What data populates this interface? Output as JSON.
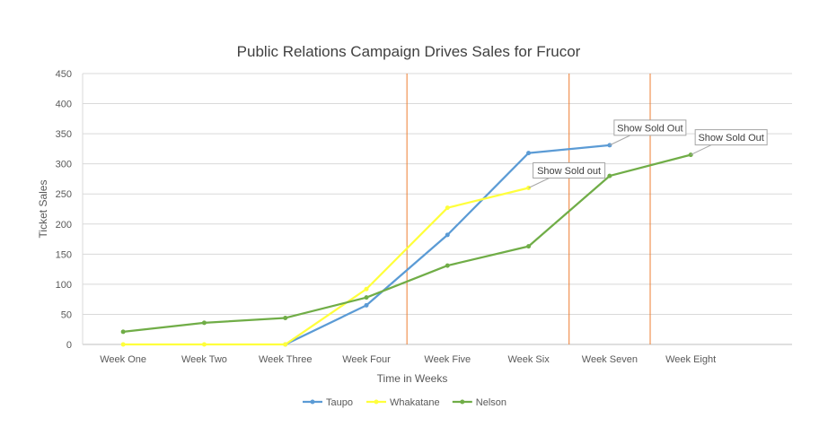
{
  "chart_data": {
    "type": "line",
    "title": "Public Relations Campaign Drives Sales for Frucor",
    "xlabel": "Time in Weeks",
    "ylabel": "Ticket Sales",
    "categories": [
      "Week One",
      "Week Two",
      "Week Three",
      "Week Four",
      "Week Five",
      "Week Six",
      "Week Seven",
      "Week Eight"
    ],
    "ylim": [
      0,
      450
    ],
    "yticks": [
      0,
      50,
      100,
      150,
      200,
      250,
      300,
      350,
      400,
      450
    ],
    "grid": true,
    "legend_position": "bottom",
    "series": [
      {
        "name": "Taupo",
        "color": "#5B9BD5",
        "values": [
          null,
          null,
          0,
          65,
          182,
          318,
          331,
          null
        ]
      },
      {
        "name": "Whakatane",
        "color": "#FFFF3C",
        "values": [
          0,
          0,
          0,
          92,
          227,
          260,
          null,
          null
        ]
      },
      {
        "name": "Nelson",
        "color": "#70AD47",
        "values": [
          21,
          36,
          44,
          78,
          131,
          163,
          280,
          315
        ]
      }
    ],
    "vertical_markers": [
      {
        "at": 3.5,
        "color": "#ED7D31"
      },
      {
        "at": 5.5,
        "color": "#ED7D31"
      },
      {
        "at": 6.5,
        "color": "#ED7D31"
      }
    ],
    "annotations": [
      {
        "text": "Show Sold out",
        "series": "Whakatane",
        "index": 5
      },
      {
        "text": "Show Sold Out",
        "series": "Taupo",
        "index": 6
      },
      {
        "text": "Show Sold Out",
        "series": "Nelson",
        "index": 7
      }
    ]
  }
}
